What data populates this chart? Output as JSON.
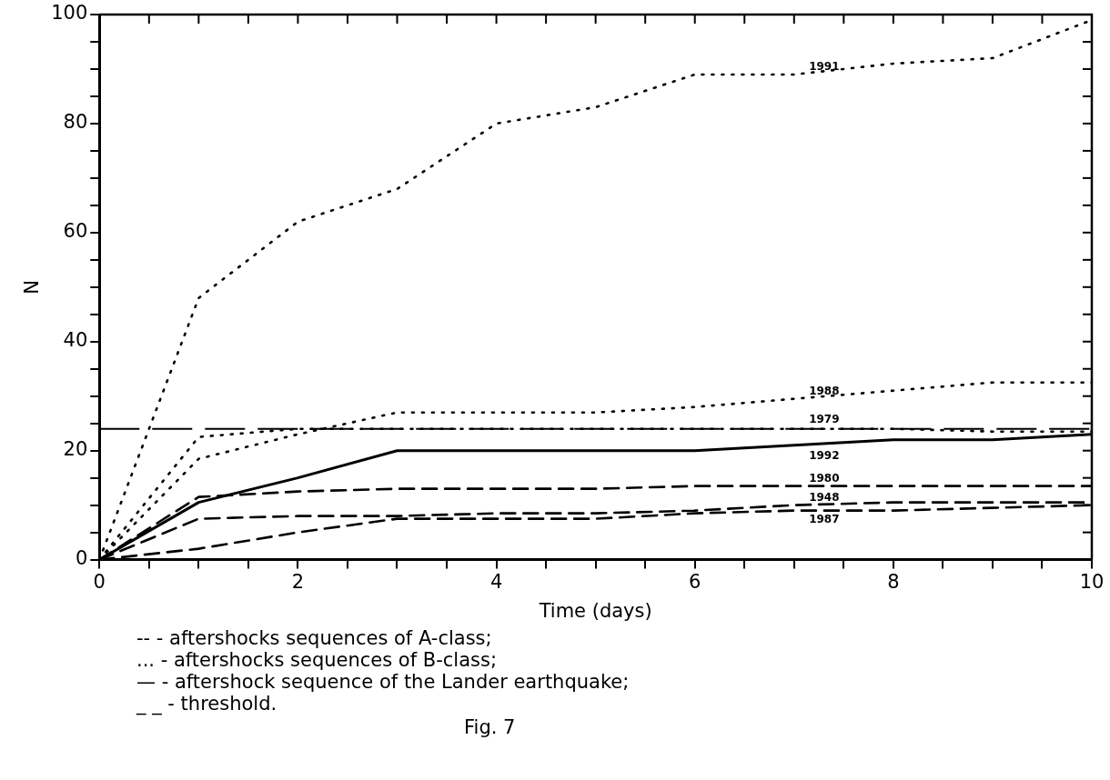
{
  "chart_data": {
    "type": "line",
    "xlabel": "Time (days)",
    "ylabel": "N",
    "x": [
      0,
      1,
      2,
      3,
      4,
      5,
      6,
      7,
      8,
      9,
      10
    ],
    "series": [
      {
        "name": "1991",
        "color": "#000000",
        "line_style": "dotted",
        "values": [
          0,
          48,
          62,
          68,
          80,
          83,
          89,
          89,
          91,
          92,
          99
        ]
      },
      {
        "name": "1988",
        "color": "#000000",
        "line_style": "dotted",
        "values": [
          0,
          18.5,
          23,
          27,
          27,
          27,
          28,
          29.5,
          31,
          32.5,
          32.5
        ]
      },
      {
        "name": "1979",
        "color": "#000000",
        "line_style": "dotted",
        "values": [
          0,
          22.5,
          24,
          24,
          24,
          24,
          24,
          24,
          24,
          23.5,
          23.5
        ]
      },
      {
        "name": "1992",
        "color": "#000000",
        "line_style": "solid",
        "values": [
          0,
          10.5,
          15,
          20,
          20,
          20,
          20,
          21,
          22,
          22,
          23
        ]
      },
      {
        "name": "1980",
        "color": "#000000",
        "line_style": "dashed",
        "values": [
          0,
          11.5,
          12.5,
          13,
          13,
          13,
          13.5,
          13.5,
          13.5,
          13.5,
          13.5
        ]
      },
      {
        "name": "1948",
        "color": "#000000",
        "line_style": "dashed",
        "values": [
          0,
          7.5,
          8,
          8,
          8.5,
          8.5,
          9,
          10,
          10.5,
          10.5,
          10.5
        ]
      },
      {
        "name": "1987",
        "color": "#000000",
        "line_style": "dashed",
        "values": [
          0,
          2,
          5,
          7.5,
          7.5,
          7.5,
          8.5,
          9,
          9,
          9.5,
          10
        ]
      }
    ],
    "ref_lines": [
      {
        "axis": "y",
        "value": 24,
        "color": "#000000",
        "line_style": "dashed"
      }
    ],
    "xlim": [
      0,
      10
    ],
    "xticks": [
      0,
      {
        "value": 0.5,
        "label": null
      },
      {
        "value": 1,
        "label": null
      },
      {
        "value": 1.5,
        "label": null
      },
      2,
      {
        "value": 2.5,
        "label": null
      },
      {
        "value": 3,
        "label": null
      },
      {
        "value": 3.5,
        "label": null
      },
      4,
      {
        "value": 4.5,
        "label": null
      },
      {
        "value": 5,
        "label": null
      },
      {
        "value": 5.5,
        "label": null
      },
      6,
      {
        "value": 6.5,
        "label": null
      },
      {
        "value": 7,
        "label": null
      },
      {
        "value": 7.5,
        "label": null
      },
      8,
      {
        "value": 8.5,
        "label": null
      },
      {
        "value": 9,
        "label": null
      },
      {
        "value": 9.5,
        "label": null
      },
      10
    ],
    "ylim": [
      0,
      100
    ],
    "yticks": [
      0,
      {
        "value": 5,
        "label": null
      },
      {
        "value": 10,
        "label": null
      },
      {
        "value": 15,
        "label": null
      },
      20,
      {
        "value": 25,
        "label": null
      },
      {
        "value": 30,
        "label": null
      },
      {
        "value": 35,
        "label": null
      },
      40,
      {
        "value": 45,
        "label": null
      },
      {
        "value": 50,
        "label": null
      },
      {
        "value": 55,
        "label": null
      },
      60,
      {
        "value": 65,
        "label": null
      },
      {
        "value": 70,
        "label": null
      },
      {
        "value": 75,
        "label": null
      },
      80,
      {
        "value": 85,
        "label": null
      },
      {
        "value": 90,
        "label": null
      },
      {
        "value": 95,
        "label": null
      },
      100
    ],
    "grid": false,
    "legend": false,
    "marker": "none",
    "annotations": [
      "-- - aftershocks sequences of A-class;",
      "... - aftershocks sequences of B-class;",
      "— - aftershock sequence of the Lander earthquake;",
      "_ _ - threshold.",
      "Fig. 7"
    ]
  }
}
